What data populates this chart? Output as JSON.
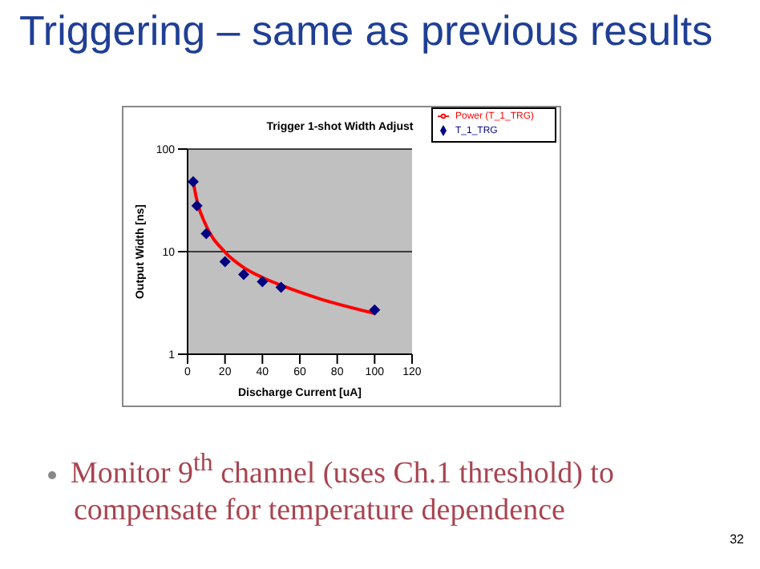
{
  "chart_data": {
    "type": "scatter",
    "title": "Triggering – same as previous results",
    "subtitle": "Trigger 1-shot Width Adjust",
    "xlabel": "Discharge Current [uA]",
    "ylabel": "Output Width [ns]",
    "x": [
      3,
      5,
      10,
      20,
      30,
      40,
      50,
      100
    ],
    "series": [
      {
        "name": "T_1_TRG",
        "type": "scatter",
        "marker": "diamond",
        "color": "#000080",
        "values": [
          48,
          28,
          15,
          8,
          6,
          5.1,
          4.5,
          2.7
        ]
      },
      {
        "name": "Power (T_1_TRG)",
        "type": "line",
        "marker": "none",
        "line_style": "solid",
        "color": "#ff0000",
        "x": [
          3,
          5,
          10,
          20,
          30,
          40,
          50,
          70,
          100
        ],
        "values": [
          48,
          31.5,
          17.8,
          9.9,
          7,
          5.6,
          4.7,
          3.5,
          2.5
        ]
      }
    ],
    "xlim": [
      0,
      120
    ],
    "xticks": [
      0,
      20,
      40,
      60,
      80,
      100,
      120
    ],
    "ylim": [
      1,
      100
    ],
    "yticks": [
      1,
      10,
      100
    ],
    "log": "y",
    "grid": "y",
    "legend": "top right",
    "annotations": [
      "Monitor 9$^{th}$ channel (uses Ch.1 threshold) to compensate for temperature dependence",
      "32"
    ]
  }
}
